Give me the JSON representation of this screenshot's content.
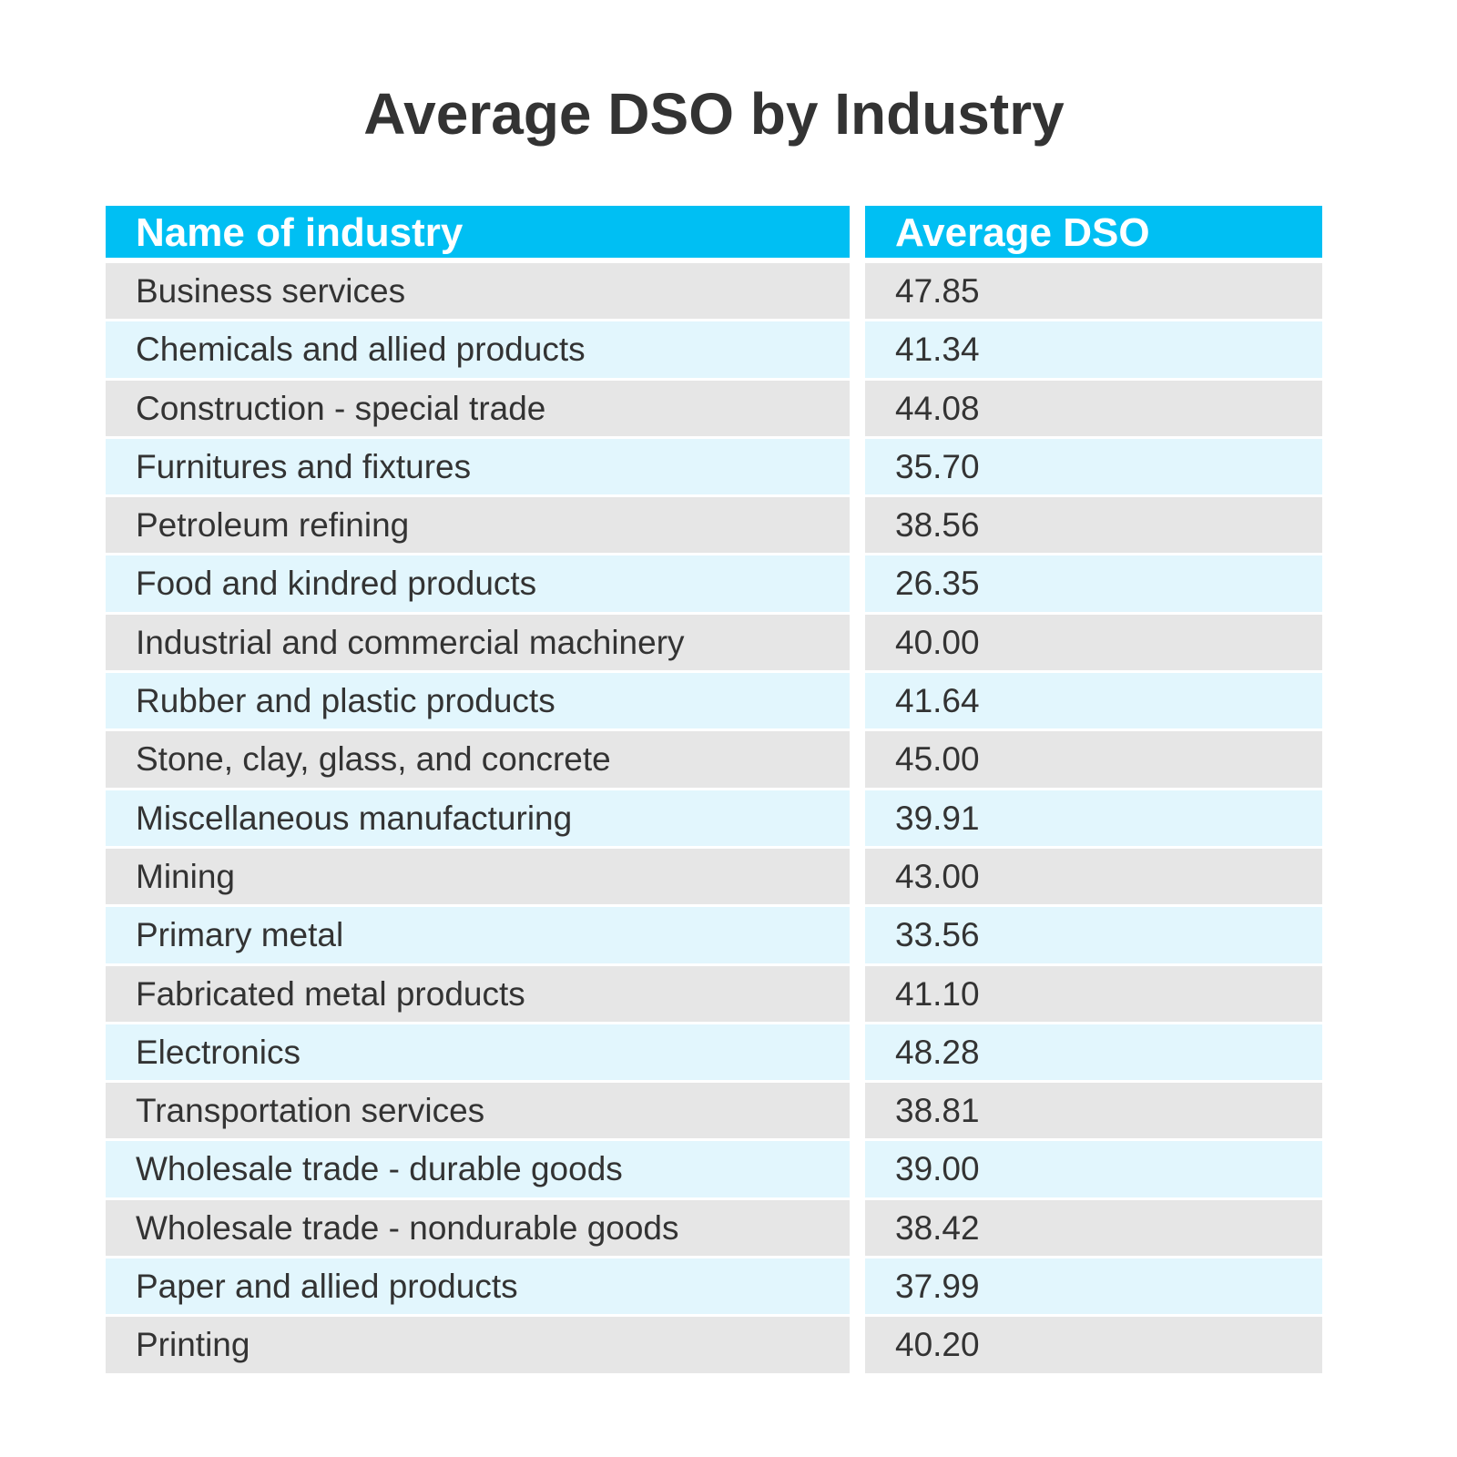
{
  "title": "Average DSO by Industry",
  "colors": {
    "header": "#00bff3",
    "row_odd": "#e6e6e6",
    "row_even": "#e2f6fd",
    "text": "#333333"
  },
  "chart_data": {
    "type": "table",
    "title": "Average DSO by Industry",
    "columns": [
      "Name of industry",
      "Average DSO"
    ],
    "rows": [
      [
        "Business services",
        "47.85"
      ],
      [
        "Chemicals and allied products",
        "41.34"
      ],
      [
        "Construction - special trade",
        "44.08"
      ],
      [
        "Furnitures and fixtures",
        "35.70"
      ],
      [
        "Petroleum refining",
        "38.56"
      ],
      [
        "Food and kindred products",
        "26.35"
      ],
      [
        "Industrial and commercial machinery",
        "40.00"
      ],
      [
        "Rubber and plastic products",
        "41.64"
      ],
      [
        "Stone, clay, glass, and concrete",
        "45.00"
      ],
      [
        "Miscellaneous manufacturing",
        "39.91"
      ],
      [
        "Mining",
        "43.00"
      ],
      [
        "Primary metal",
        "33.56"
      ],
      [
        "Fabricated metal products",
        "41.10"
      ],
      [
        "Electronics",
        "48.28"
      ],
      [
        "Transportation services",
        "38.81"
      ],
      [
        "Wholesale trade - durable goods",
        "39.00"
      ],
      [
        "Wholesale trade - nondurable goods",
        "38.42"
      ],
      [
        "Paper and allied products",
        "37.99"
      ],
      [
        "Printing",
        "40.20"
      ]
    ]
  }
}
